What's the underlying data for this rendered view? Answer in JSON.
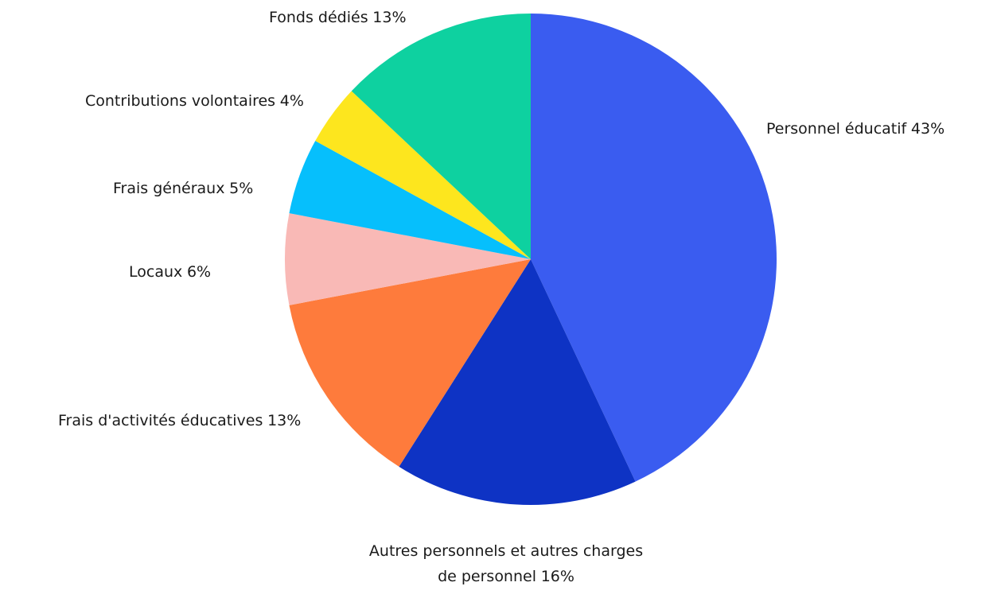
{
  "chart_data": {
    "type": "pie",
    "categories": [
      "Personnel éducatif",
      "Autres personnels et autres charges de personnel",
      "Frais d'activités éducatives",
      "Locaux",
      "Frais généraux",
      "Contributions volontaires",
      "Fonds dédiés"
    ],
    "values": [
      43,
      16,
      13,
      6,
      5,
      4,
      13
    ],
    "value_labels": [
      "43%",
      "16%",
      "13%",
      "6%",
      "5%",
      "4%",
      "13%"
    ],
    "colors": [
      "#3a5cf0",
      "#0e33c4",
      "#fe7b3c",
      "#f9b9b6",
      "#06bffc",
      "#fde61e",
      "#0ed1a0"
    ]
  }
}
